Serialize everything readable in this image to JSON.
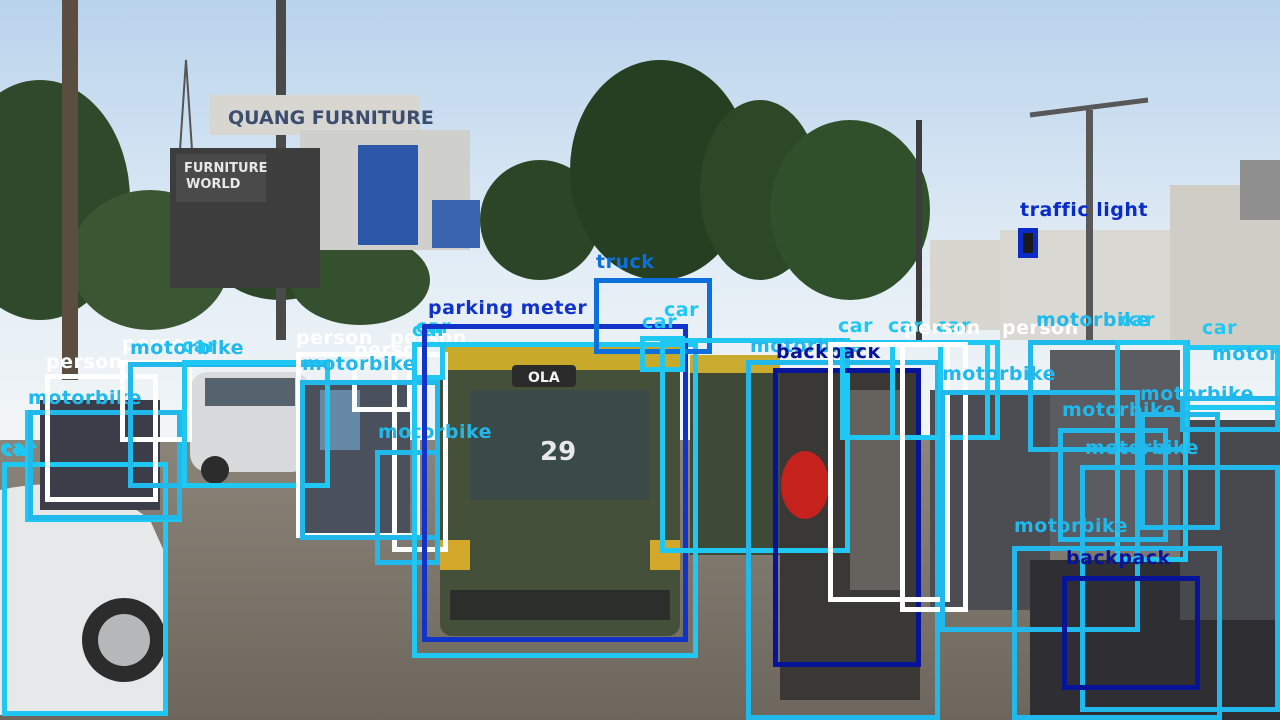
{
  "classes": {
    "person": {
      "label": "person",
      "color": "#ffffff"
    },
    "motorbike": {
      "label": "motorbike",
      "color": "#21b8ec"
    },
    "car": {
      "label": "car",
      "color": "#1ec8f2"
    },
    "truck": {
      "label": "truck",
      "color": "#0d6fdc"
    },
    "parking_meter": {
      "label": "parking meter",
      "color": "#1233c9"
    },
    "backpack": {
      "label": "backpack",
      "color": "#07149a"
    },
    "traffic_light": {
      "label": "traffic light",
      "color": "#0a2bc8"
    }
  },
  "signs": {
    "rooftop": "QUANG FURNITURE",
    "billboard_line1": "FURNITURE",
    "billboard_line2": "WORLD",
    "rickshaw_badge": "OLA",
    "rickshaw_number": "29"
  },
  "detections": [
    {
      "cls": "car"
    },
    {
      "cls": "car"
    },
    {
      "cls": "motorbike"
    },
    {
      "cls": "person"
    },
    {
      "cls": "person"
    },
    {
      "cls": "motorbike"
    },
    {
      "cls": "car"
    },
    {
      "cls": "person"
    },
    {
      "cls": "person"
    },
    {
      "cls": "person"
    },
    {
      "cls": "motorbike"
    },
    {
      "cls": "motorbike"
    },
    {
      "cls": "car"
    },
    {
      "cls": "car"
    },
    {
      "cls": "parking_meter"
    },
    {
      "cls": "truck"
    },
    {
      "cls": "car"
    },
    {
      "cls": "car"
    },
    {
      "cls": "motorbike"
    },
    {
      "cls": "backpack"
    },
    {
      "cls": "car"
    },
    {
      "cls": "car"
    },
    {
      "cls": "car"
    },
    {
      "cls": "person"
    },
    {
      "cls": "person"
    },
    {
      "cls": "motorbike"
    },
    {
      "cls": "motorbike"
    },
    {
      "cls": "car"
    },
    {
      "cls": "motorbike"
    },
    {
      "cls": "motorbike"
    },
    {
      "cls": "car"
    },
    {
      "cls": "motorbike"
    },
    {
      "cls": "motorbike"
    },
    {
      "cls": "motorbike"
    },
    {
      "cls": "backpack"
    },
    {
      "cls": "traffic_light"
    }
  ]
}
